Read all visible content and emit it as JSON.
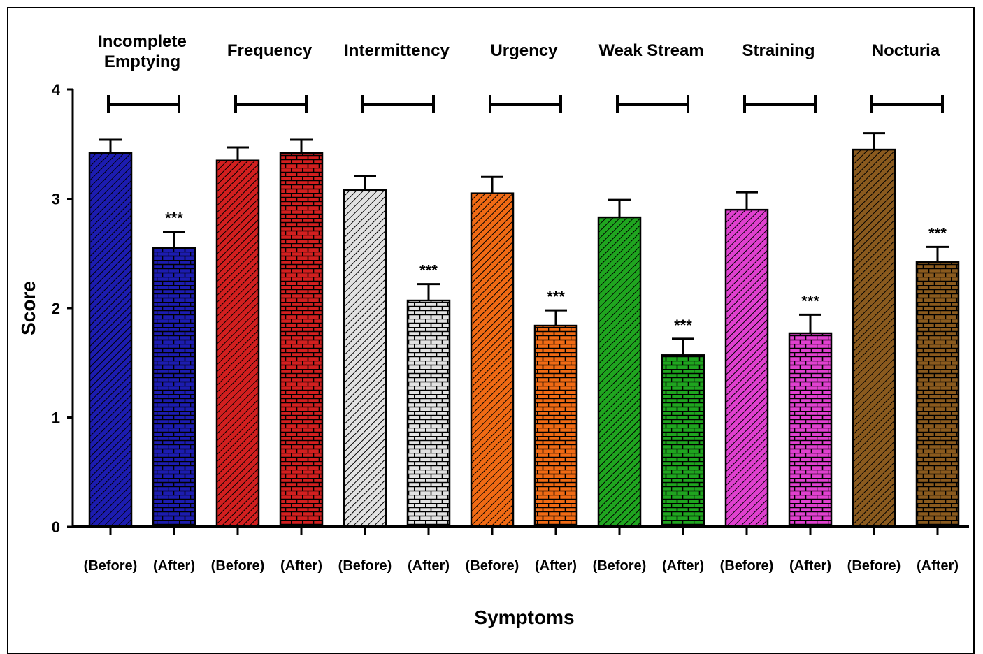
{
  "chart_data": {
    "type": "bar",
    "xlabel": "Symptoms",
    "ylabel": "Score",
    "ylim": [
      0,
      4
    ],
    "yticks": [
      "0",
      "1",
      "2",
      "3",
      "4"
    ],
    "groups": [
      {
        "label": "Incomplete\nEmptying",
        "color": "#1c1cb0",
        "bars": [
          {
            "category": "(Before)",
            "value": 3.42,
            "error": 0.12,
            "sig": ""
          },
          {
            "category": "(After)",
            "value": 2.55,
            "error": 0.15,
            "sig": "***"
          }
        ]
      },
      {
        "label": "Frequency",
        "color": "#d21f1f",
        "bars": [
          {
            "category": "(Before)",
            "value": 3.35,
            "error": 0.12,
            "sig": ""
          },
          {
            "category": "(After)",
            "value": 3.42,
            "error": 0.12,
            "sig": ""
          }
        ]
      },
      {
        "label": "Intermittency",
        "color": "#e2e2e2",
        "bars": [
          {
            "category": "(Before)",
            "value": 3.08,
            "error": 0.13,
            "sig": ""
          },
          {
            "category": "(After)",
            "value": 2.07,
            "error": 0.15,
            "sig": "***"
          }
        ]
      },
      {
        "label": "Urgency",
        "color": "#f06a14",
        "bars": [
          {
            "category": "(Before)",
            "value": 3.05,
            "error": 0.15,
            "sig": ""
          },
          {
            "category": "(After)",
            "value": 1.84,
            "error": 0.14,
            "sig": "***"
          }
        ]
      },
      {
        "label": "Weak Stream",
        "color": "#1fa51f",
        "bars": [
          {
            "category": "(Before)",
            "value": 2.83,
            "error": 0.16,
            "sig": ""
          },
          {
            "category": "(After)",
            "value": 1.57,
            "error": 0.15,
            "sig": "***"
          }
        ]
      },
      {
        "label": "Straining",
        "color": "#e040cf",
        "bars": [
          {
            "category": "(Before)",
            "value": 2.9,
            "error": 0.16,
            "sig": ""
          },
          {
            "category": "(After)",
            "value": 1.77,
            "error": 0.17,
            "sig": "***"
          }
        ]
      },
      {
        "label": "Nocturia",
        "color": "#8a5a1e",
        "bars": [
          {
            "category": "(Before)",
            "value": 3.45,
            "error": 0.15,
            "sig": ""
          },
          {
            "category": "(After)",
            "value": 2.42,
            "error": 0.14,
            "sig": "***"
          }
        ]
      }
    ]
  }
}
